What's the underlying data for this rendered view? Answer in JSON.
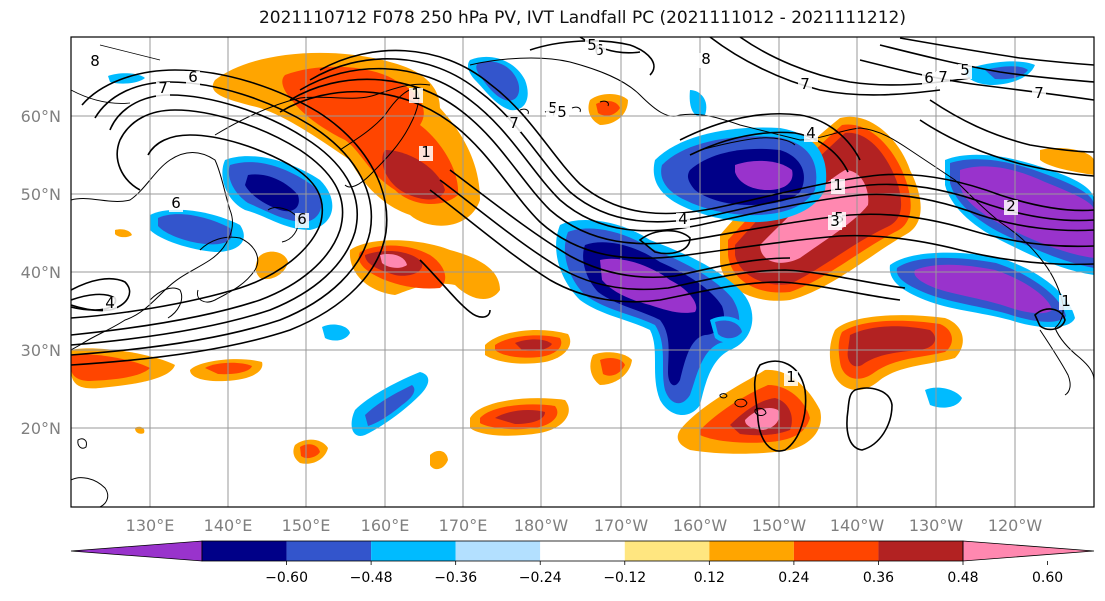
{
  "title": "2021110712 F078 250 hPa PV, IVT Landfall PC (2021111012 - 2021111212)",
  "lat_labels": [
    "20°N",
    "30°N",
    "40°N",
    "50°N",
    "60°N"
  ],
  "lon_labels": [
    "130°E",
    "140°E",
    "150°E",
    "160°E",
    "170°E",
    "180°W",
    "170°W",
    "160°W",
    "150°W",
    "140°W",
    "130°W",
    "120°W"
  ],
  "colorbar": {
    "tick_labels": [
      "−0.60",
      "−0.48",
      "−0.36",
      "−0.24",
      "−0.12",
      "0.12",
      "0.24",
      "0.36",
      "0.48",
      "0.60"
    ],
    "colors": [
      "#9933cc",
      "#000088",
      "#3355cc",
      "#00bbff",
      "#b3e0ff",
      "#ffffff",
      "#ffe680",
      "#ffa500",
      "#ff4500",
      "#b22222",
      "#ff88b0"
    ]
  },
  "contour_labels": [
    "8",
    "7",
    "6",
    "5",
    "4",
    "6",
    "6",
    "4",
    "8",
    "6",
    "5",
    "5",
    "7",
    "7",
    "4",
    "1",
    "5",
    "3",
    "7",
    "6",
    "5",
    "1",
    "1",
    "7",
    "1",
    "2",
    "1"
  ]
}
